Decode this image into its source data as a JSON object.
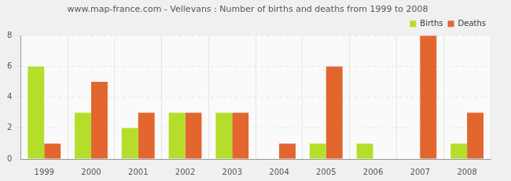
{
  "chart_data": {
    "type": "bar",
    "title": "www.map-france.com - Vellevans : Number of births and deaths from 1999 to 2008",
    "categories": [
      "1999",
      "2000",
      "2001",
      "2002",
      "2003",
      "2004",
      "2005",
      "2006",
      "2007",
      "2008"
    ],
    "series": [
      {
        "name": "Births",
        "color": "#b5de2b",
        "values": [
          6,
          3,
          2,
          3,
          3,
          0,
          1,
          1,
          0,
          1
        ]
      },
      {
        "name": "Deaths",
        "color": "#e3662f",
        "values": [
          1,
          5,
          3,
          3,
          3,
          1,
          6,
          0,
          8,
          3
        ]
      }
    ],
    "ylim": [
      0,
      8
    ],
    "yticks": [
      0,
      2,
      4,
      6,
      8
    ],
    "grid": true,
    "legend": "upper right"
  }
}
